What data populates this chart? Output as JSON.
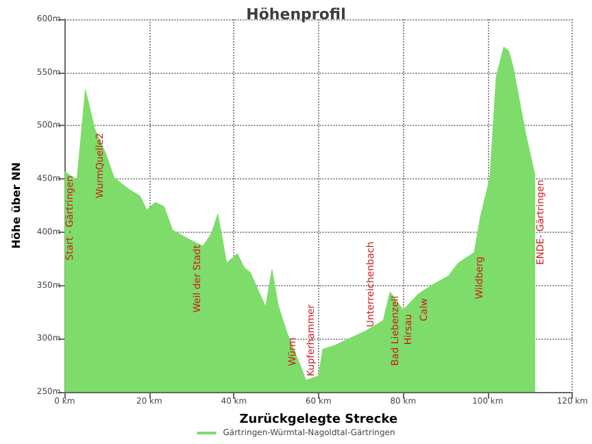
{
  "chart_data": {
    "type": "area",
    "title": "Höhenprofil",
    "xlabel": "Zurückgelegte Strecke",
    "ylabel": "Höhe über NN",
    "x": [
      0,
      2.9,
      4.9,
      7.1,
      9.7,
      11.7,
      15.3,
      17.8,
      19.4,
      21.4,
      23.5,
      25.5,
      30,
      32.7,
      34.7,
      36.2,
      38.3,
      40.8,
      42.4,
      43.9,
      47.5,
      49,
      50.5,
      52.6,
      56.1,
      57,
      60,
      61,
      64,
      68.3,
      71,
      75.3,
      76.9,
      80,
      83.6,
      86.7,
      90.7,
      93,
      96.8,
      98.3,
      100.5,
      102,
      103.8,
      105,
      106,
      109,
      111.2
    ],
    "series": [
      {
        "name": "Gärtringen-Würmtal-Nagoldtal-Gärtringen",
        "color": "#7ddc6a",
        "values": [
          457,
          449,
          534,
          497,
          474,
          451,
          440,
          434,
          421,
          428,
          424,
          402,
          392,
          387,
          399,
          417,
          371,
          380,
          367,
          362,
          330,
          365,
          331,
          305,
          271,
          261,
          265,
          290,
          294,
          302,
          307,
          317,
          344,
          327,
          342,
          350,
          359,
          371,
          381,
          415,
          451,
          546,
          574,
          570,
          555,
          492,
          453
        ]
      }
    ],
    "xlim": [
      0,
      120
    ],
    "xticks": [
      {
        "value": 0,
        "label": "0 km"
      },
      {
        "value": 20,
        "label": "20 km"
      },
      {
        "value": 40,
        "label": "40 km"
      },
      {
        "value": 60,
        "label": "60 km"
      },
      {
        "value": 80,
        "label": "80 km"
      },
      {
        "value": 100,
        "label": "100 km"
      },
      {
        "value": 120,
        "label": "120 km"
      }
    ],
    "ylim": [
      250,
      600
    ],
    "yticks": [
      {
        "value": 250,
        "label": "250m"
      },
      {
        "value": 300,
        "label": "300m"
      },
      {
        "value": 350,
        "label": "350m"
      },
      {
        "value": 400,
        "label": "400m"
      },
      {
        "value": 450,
        "label": "450m"
      },
      {
        "value": 500,
        "label": "500m"
      },
      {
        "value": 550,
        "label": "550m"
      },
      {
        "value": 600,
        "label": "600m"
      }
    ],
    "annotations": [
      {
        "text": "Start - Gärtringen",
        "x": 0,
        "y": 457
      },
      {
        "text": "WurmQuelle2",
        "x": 7.1,
        "y": 497
      },
      {
        "text": "Weil der Stadt",
        "x": 30,
        "y": 392
      },
      {
        "text": "Würm",
        "x": 52.6,
        "y": 305
      },
      {
        "text": "Kupferhammer",
        "x": 57,
        "y": 261
      },
      {
        "text": "Unterreichenbach",
        "x": 71,
        "y": 307
      },
      {
        "text": "Bad Liebenzell",
        "x": 76.9,
        "y": 344
      },
      {
        "text": "Hirsau",
        "x": 80,
        "y": 327
      },
      {
        "text": "Calw",
        "x": 83.6,
        "y": 342
      },
      {
        "text": "Wildberg",
        "x": 96.8,
        "y": 381
      },
      {
        "text": "ENDE- Gärtringen",
        "x": 111.2,
        "y": 453
      }
    ],
    "grid": true,
    "legend": "bottom",
    "marker": "none",
    "line_style": "solid"
  }
}
